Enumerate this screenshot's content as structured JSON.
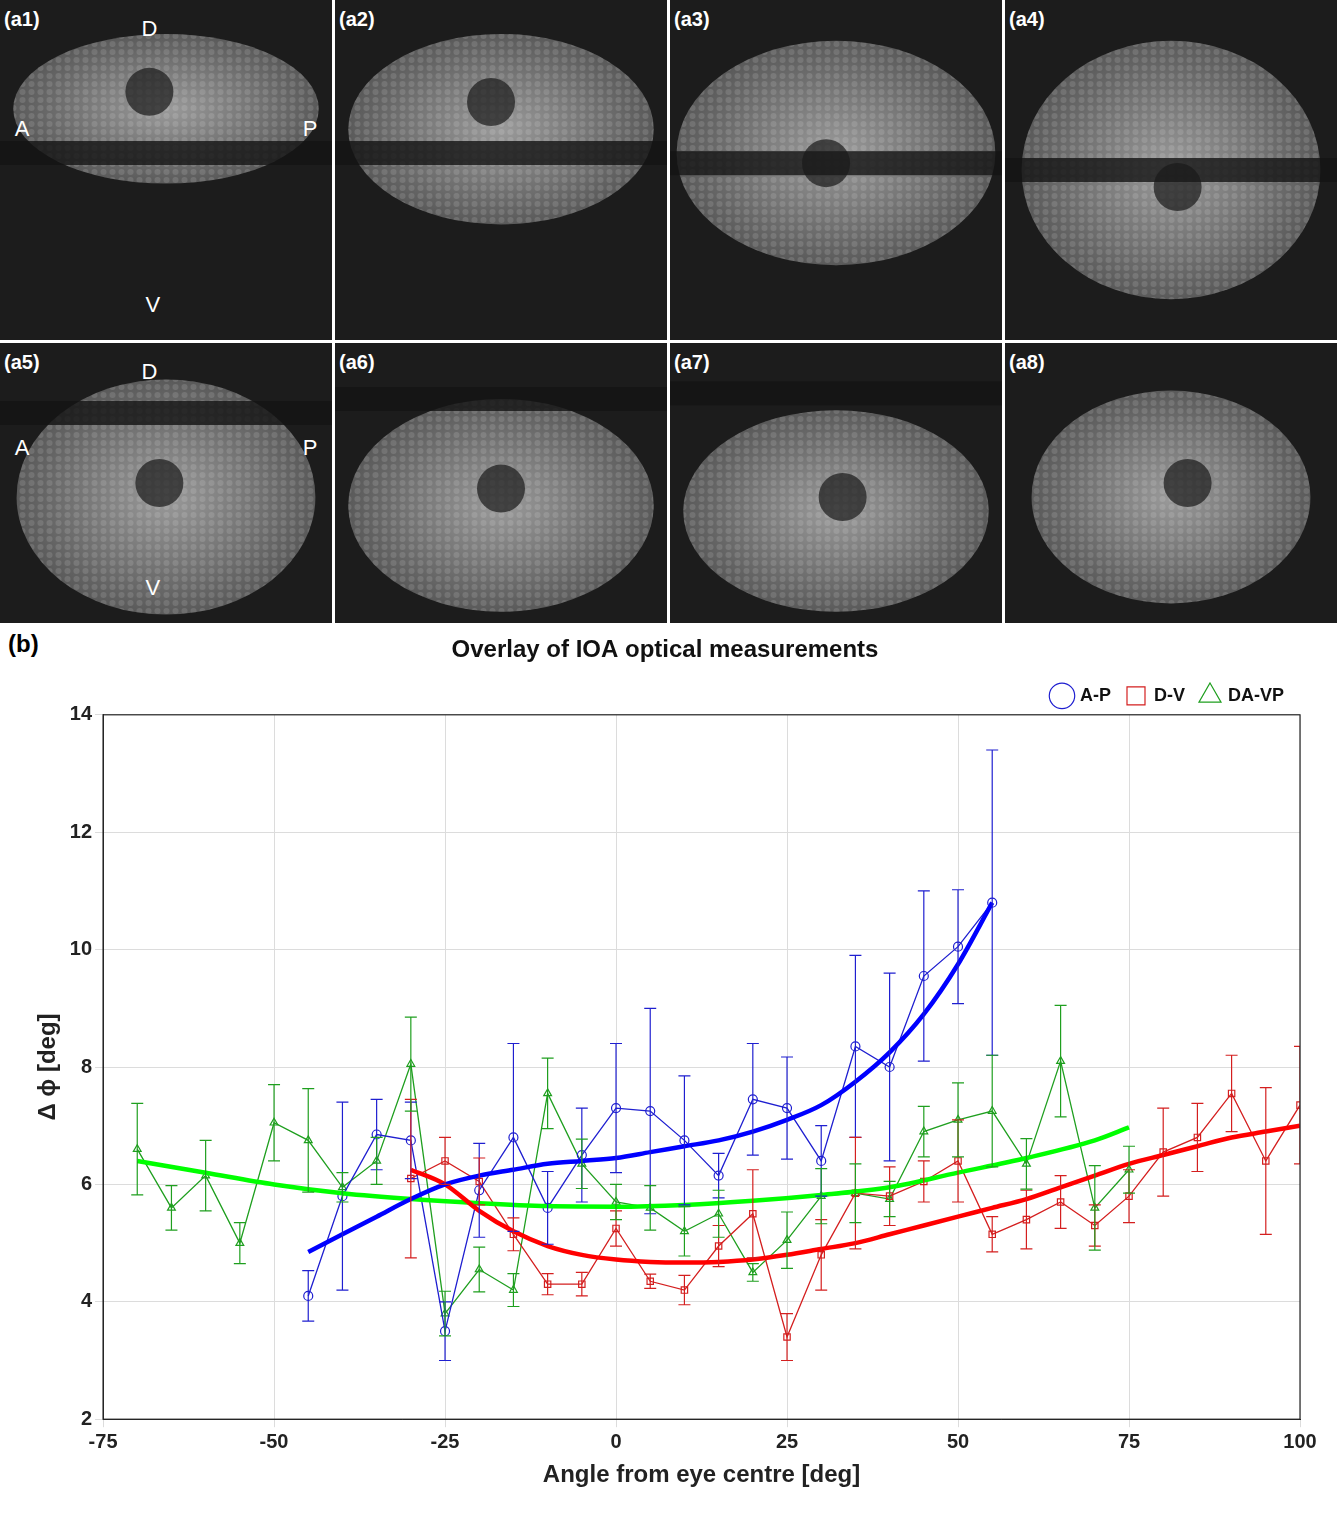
{
  "figure": {
    "panels": [
      {
        "label": "(a1)",
        "marks": {
          "top": "D",
          "left": "A",
          "right": "P",
          "bottom": "V"
        }
      },
      {
        "label": "(a2)"
      },
      {
        "label": "(a3)"
      },
      {
        "label": "(a4)"
      },
      {
        "label": "(a5)",
        "marks": {
          "top": "D",
          "left": "A",
          "right": "P",
          "bottom": "V"
        }
      },
      {
        "label": "(a6)"
      },
      {
        "label": "(a7)"
      },
      {
        "label": "(a8)"
      }
    ]
  },
  "chart_data": {
    "type": "line",
    "panel_label": "(b)",
    "title": "Overlay of IOA optical measurements",
    "x_label": "Angle from eye centre [deg]",
    "y_label": "Δ ϕ [deg]",
    "xlim": [
      -75,
      100
    ],
    "xticks": [
      -75,
      -50,
      -25,
      0,
      25,
      50,
      75,
      100
    ],
    "ylim": [
      2,
      14
    ],
    "yticks": [
      2,
      4,
      6,
      8,
      10,
      12,
      14
    ],
    "grid": true,
    "legend": "top-right",
    "series": [
      {
        "name": "A-P",
        "color": "#1f1fd0",
        "marker": "circle",
        "x": [
          -45,
          -40,
          -35,
          -30,
          -25,
          -20,
          -15,
          -10,
          -5,
          0,
          5,
          10,
          15,
          20,
          25,
          30,
          35,
          40,
          45,
          50,
          55
        ],
        "values": [
          4.1,
          5.8,
          6.85,
          6.75,
          3.5,
          5.9,
          6.8,
          5.6,
          6.5,
          7.3,
          7.25,
          6.75,
          6.15,
          7.45,
          7.3,
          6.4,
          8.35,
          8.0,
          9.55,
          10.05,
          10.8
        ],
        "errors": [
          0.43,
          1.6,
          0.6,
          0.65,
          0.5,
          0.8,
          1.6,
          0.62,
          0.8,
          1.1,
          1.75,
          1.1,
          0.38,
          0.95,
          0.87,
          0.6,
          1.55,
          1.6,
          1.45,
          0.97,
          2.6
        ],
        "fit": {
          "color": "#0000ff",
          "x": [
            -45,
            -40,
            -35,
            -30,
            -25,
            -20,
            -15,
            -10,
            -5,
            0,
            5,
            10,
            15,
            20,
            25,
            30,
            35,
            40,
            45,
            50,
            55
          ],
          "values": [
            4.85,
            5.15,
            5.45,
            5.75,
            6.0,
            6.15,
            6.25,
            6.35,
            6.4,
            6.45,
            6.55,
            6.65,
            6.75,
            6.9,
            7.1,
            7.35,
            7.75,
            8.25,
            8.9,
            9.75,
            10.8
          ]
        }
      },
      {
        "name": "D-V",
        "color": "#d41f1f",
        "marker": "square",
        "x": [
          -30,
          -25,
          -20,
          -15,
          -10,
          -5,
          0,
          5,
          10,
          15,
          20,
          25,
          30,
          35,
          40,
          45,
          50,
          55,
          60,
          65,
          70,
          75,
          80,
          85,
          90,
          95,
          100
        ],
        "values": [
          6.1,
          6.4,
          6.05,
          5.15,
          4.3,
          4.3,
          5.25,
          4.35,
          4.2,
          4.95,
          5.5,
          3.4,
          4.8,
          5.85,
          5.8,
          6.05,
          6.4,
          5.15,
          5.4,
          5.7,
          5.3,
          5.8,
          6.55,
          6.8,
          7.55,
          6.4,
          7.35
        ],
        "errors": [
          1.35,
          0.4,
          0.4,
          0.28,
          0.18,
          0.2,
          0.3,
          0.12,
          0.25,
          0.35,
          0.75,
          0.4,
          0.6,
          0.95,
          0.5,
          0.35,
          0.7,
          0.3,
          0.5,
          0.45,
          0.35,
          0.45,
          0.75,
          0.58,
          0.65,
          1.25,
          1.0
        ],
        "fit": {
          "color": "#ff0000",
          "x": [
            -30,
            -25,
            -20,
            -15,
            -10,
            -5,
            0,
            5,
            10,
            15,
            20,
            25,
            30,
            35,
            40,
            45,
            50,
            55,
            60,
            65,
            70,
            75,
            80,
            85,
            90,
            95,
            100
          ],
          "values": [
            6.25,
            6.0,
            5.55,
            5.2,
            4.95,
            4.8,
            4.72,
            4.68,
            4.67,
            4.68,
            4.72,
            4.8,
            4.9,
            5.0,
            5.15,
            5.3,
            5.45,
            5.6,
            5.75,
            5.95,
            6.15,
            6.35,
            6.5,
            6.65,
            6.8,
            6.9,
            7.0
          ]
        }
      },
      {
        "name": "DA-VP",
        "color": "#1f9f1f",
        "marker": "triangle",
        "x": [
          -70,
          -65,
          -60,
          -55,
          -50,
          -45,
          -40,
          -35,
          -30,
          -25,
          -20,
          -15,
          -10,
          -5,
          0,
          5,
          10,
          15,
          20,
          25,
          30,
          35,
          40,
          45,
          50,
          55,
          60,
          65,
          70,
          75
        ],
        "values": [
          6.6,
          5.6,
          6.15,
          5.0,
          7.05,
          6.75,
          5.95,
          6.4,
          8.05,
          3.8,
          4.55,
          4.2,
          7.55,
          6.35,
          5.7,
          5.6,
          5.2,
          5.5,
          4.5,
          5.05,
          5.8,
          5.85,
          5.75,
          6.9,
          7.1,
          7.25,
          6.35,
          8.1,
          5.6,
          6.25
        ],
        "errors": [
          0.78,
          0.38,
          0.6,
          0.35,
          0.65,
          0.88,
          0.25,
          0.4,
          0.8,
          0.38,
          0.38,
          0.28,
          0.6,
          0.42,
          0.3,
          0.38,
          0.42,
          0.4,
          0.15,
          0.48,
          0.47,
          0.5,
          0.3,
          0.43,
          0.63,
          0.95,
          0.43,
          0.95,
          0.72,
          0.4
        ],
        "fit": {
          "color": "#00ff00",
          "x": [
            -70,
            -60,
            -50,
            -40,
            -30,
            -20,
            -10,
            0,
            10,
            20,
            30,
            40,
            50,
            60,
            70,
            75
          ],
          "values": [
            6.4,
            6.2,
            6.0,
            5.85,
            5.75,
            5.68,
            5.63,
            5.62,
            5.65,
            5.72,
            5.82,
            5.95,
            6.2,
            6.45,
            6.75,
            6.97
          ]
        }
      }
    ]
  }
}
